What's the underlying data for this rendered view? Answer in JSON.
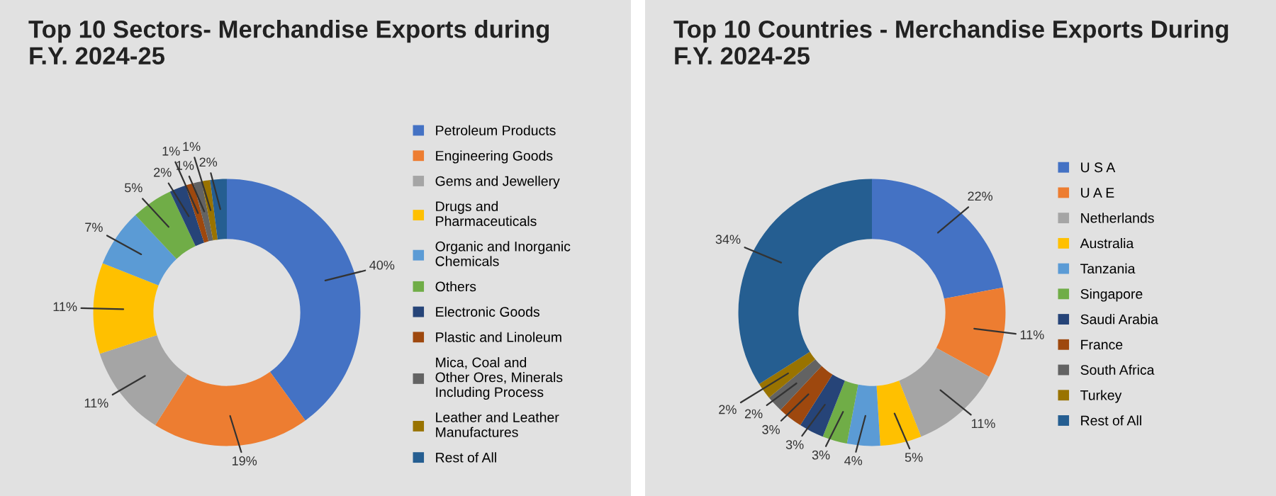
{
  "chart_data": [
    {
      "type": "donut",
      "title": "Top 10 Sectors- Merchandise Exports during\nF.Y. 2024-25",
      "categories": [
        "Petroleum Products",
        "Engineering Goods",
        "Gems and Jewellery",
        "Drugs and\nPharmaceuticals",
        "Organic and Inorganic\nChemicals",
        "Others",
        "Electronic Goods",
        "Plastic and Linoleum",
        "Mica, Coal and\nOther Ores, Minerals\nIncluding Process",
        "Leather and Leather\nManufactures",
        "Rest of All"
      ],
      "values": [
        40,
        19,
        11,
        11,
        7,
        5,
        2,
        1,
        1,
        1,
        2
      ],
      "colors": [
        "#4472c4",
        "#ed7d31",
        "#a5a5a5",
        "#ffc000",
        "#5b9bd5",
        "#70ad47",
        "#264478",
        "#9e480e",
        "#636363",
        "#997300",
        "#255e91"
      ],
      "value_labels": [
        "40%",
        "19%",
        "11%",
        "11%",
        "7%",
        "5%",
        "2%",
        "1%",
        "1%",
        "1%",
        "2%"
      ],
      "legend": "right"
    },
    {
      "type": "donut",
      "title": "Top 10 Countries - Merchandise Exports During\nF.Y. 2024-25",
      "categories": [
        "U S A",
        "U A E",
        "Netherlands",
        "Australia",
        "Tanzania",
        "Singapore",
        "Saudi Arabia",
        "France",
        "South Africa",
        "Turkey",
        "Rest of All"
      ],
      "values": [
        22,
        11,
        11,
        5,
        4,
        3,
        3,
        3,
        2,
        2,
        34
      ],
      "colors": [
        "#4472c4",
        "#ed7d31",
        "#a5a5a5",
        "#ffc000",
        "#5b9bd5",
        "#70ad47",
        "#264478",
        "#9e480e",
        "#636363",
        "#997300",
        "#255e91"
      ],
      "value_labels": [
        "22%",
        "11%",
        "11%",
        "5%",
        "4%",
        "3%",
        "3%",
        "3%",
        "2%",
        "2%",
        "34%"
      ],
      "legend": "right"
    }
  ]
}
